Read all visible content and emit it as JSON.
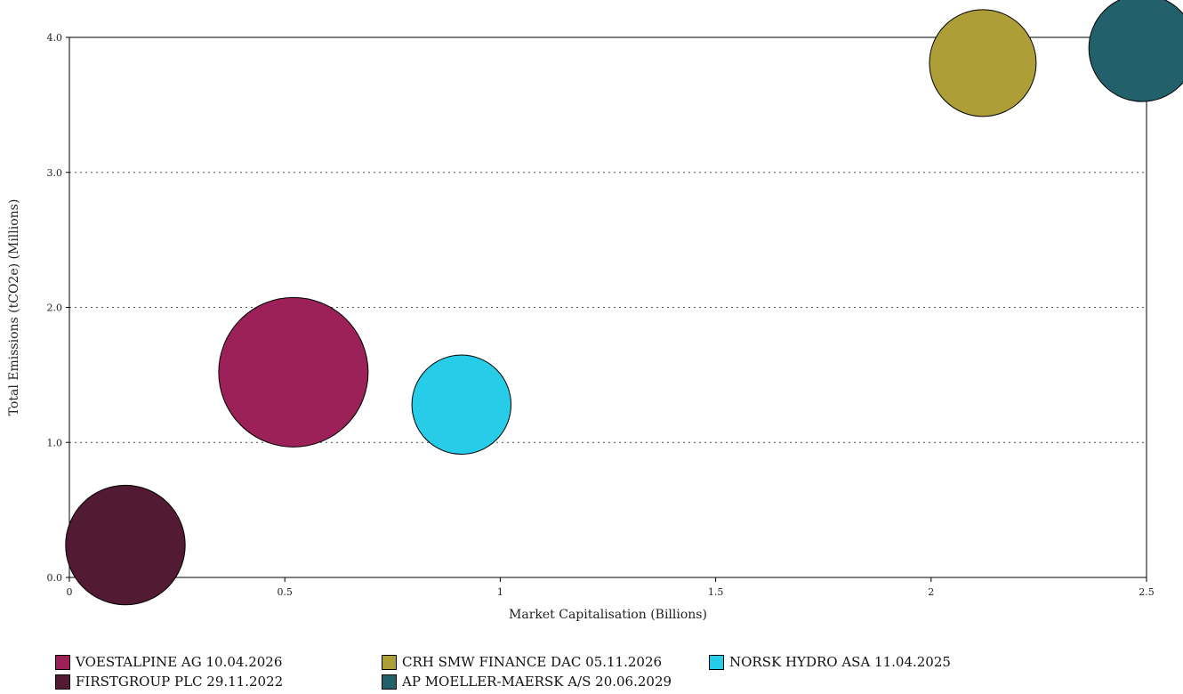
{
  "chart_data": {
    "type": "scatter",
    "subtype": "bubble",
    "title": "",
    "xlabel": "Market Capitalisation (Billions)",
    "ylabel": "Total Emissions (tCO2e) (Millions)",
    "xlim": [
      0,
      2.5
    ],
    "ylim": [
      0,
      4.0
    ],
    "x_ticks": [
      "0",
      "0.5",
      "1",
      "1.5",
      "2",
      "2.5"
    ],
    "y_ticks": [
      "0.0",
      "1.0",
      "2.0",
      "3.0",
      "4.0"
    ],
    "grid": "horizontal dotted",
    "legend_position": "bottom",
    "series": [
      {
        "name": "VOESTALPINE AG 10.04.2026",
        "color": "#9B2158",
        "x": 0.52,
        "y": 1.52,
        "size": 1.0
      },
      {
        "name": "CRH SMW FINANCE DAC 05.11.2026",
        "color": "#AD9E38",
        "x": 2.12,
        "y": 3.81,
        "size": 0.51
      },
      {
        "name": "NORSK HYDRO ASA 11.04.2025",
        "color": "#27CDE8",
        "x": 0.91,
        "y": 1.28,
        "size": 0.44
      },
      {
        "name": "FIRSTGROUP PLC 29.11.2022",
        "color": "#531A34",
        "x": 0.13,
        "y": 0.24,
        "size": 0.64
      },
      {
        "name": "AP MOELLER-MAERSK A/S 20.06.2029",
        "color": "#22616B",
        "x": 2.49,
        "y": 3.92,
        "size": 0.51
      }
    ]
  }
}
